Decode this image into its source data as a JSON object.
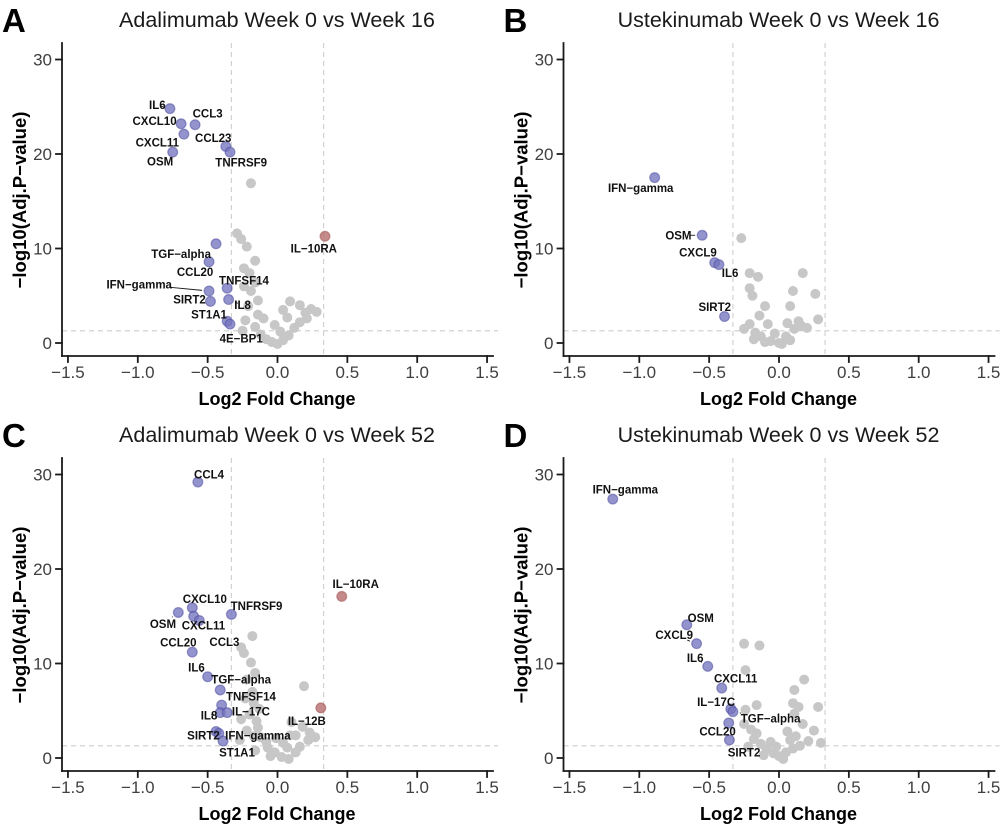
{
  "figure": {
    "colors": {
      "downregulated_point": "#8f8fca",
      "downregulated_stroke": "#5a5aa8",
      "upregulated_point": "#c48a8a",
      "upregulated_stroke": "#a96868",
      "nonsignificant_point": "#c7c7c7",
      "threshold_line": "#d2d2d2",
      "axis": "#1a1a1a",
      "tick_text": "#3f3f3f",
      "background": "#ffffff"
    },
    "axes": {
      "xlabel": "Log2 Fold Change",
      "ylabel": "−log10(Adj.P−value)",
      "x_range": [
        -1.5,
        1.5
      ],
      "y_range": [
        0,
        30
      ],
      "x_ticks": [
        {
          "v": -1.5,
          "label": "−1.5"
        },
        {
          "v": -1.0,
          "label": "−1.0"
        },
        {
          "v": -0.5,
          "label": "−0.5"
        },
        {
          "v": 0.0,
          "label": "0.0"
        },
        {
          "v": 0.5,
          "label": "0.5"
        },
        {
          "v": 1.0,
          "label": "1.0"
        },
        {
          "v": 1.5,
          "label": "1.5"
        }
      ],
      "y_ticks": [
        {
          "v": 0,
          "label": "0"
        },
        {
          "v": 10,
          "label": "10"
        },
        {
          "v": 20,
          "label": "20"
        },
        {
          "v": 30,
          "label": "30"
        }
      ],
      "thresholds": {
        "x": [
          -0.33,
          0.33
        ],
        "y": 1.3
      },
      "grid": "dashed threshold lines only"
    }
  },
  "chart_data": [
    {
      "type": "scatter",
      "letter": "A",
      "title": "Adalimumab Week 0 vs Week 16",
      "significant": [
        {
          "gene": "IL6",
          "x": -0.77,
          "y": 24.8,
          "direction": "down",
          "label_x": -0.86,
          "label_y": 25.2,
          "leader": true
        },
        {
          "gene": "CXCL10",
          "x": -0.69,
          "y": 23.2,
          "direction": "down",
          "label_x": -0.88,
          "label_y": 23.5,
          "leader": false
        },
        {
          "gene": "CCL3",
          "x": -0.59,
          "y": 23.1,
          "direction": "down",
          "label_x": -0.5,
          "label_y": 24.3,
          "leader": false
        },
        {
          "gene": "CXCL11",
          "x": -0.67,
          "y": 22.1,
          "direction": "down",
          "label_x": -0.86,
          "label_y": 21.2,
          "leader": false
        },
        {
          "gene": "OSM",
          "x": -0.75,
          "y": 20.2,
          "direction": "down",
          "label_x": -0.84,
          "label_y": 19.2,
          "leader": false
        },
        {
          "gene": "CCL23",
          "x": -0.37,
          "y": 20.8,
          "direction": "down",
          "label_x": -0.46,
          "label_y": 21.7,
          "leader": false
        },
        {
          "gene": "TNFRSF9",
          "x": -0.34,
          "y": 20.2,
          "direction": "down",
          "label_x": -0.26,
          "label_y": 19.1,
          "leader": false
        },
        {
          "gene": "TGF−alpha",
          "x": -0.44,
          "y": 10.5,
          "direction": "down",
          "label_x": -0.69,
          "label_y": 9.4,
          "leader": false
        },
        {
          "gene": "CCL20",
          "x": -0.49,
          "y": 8.6,
          "direction": "down",
          "label_x": -0.59,
          "label_y": 7.5,
          "leader": false
        },
        {
          "gene": "IL−10RA",
          "x": 0.34,
          "y": 11.3,
          "direction": "up",
          "label_x": 0.26,
          "label_y": 10.0,
          "leader": false
        },
        {
          "gene": "IFN−gamma",
          "x": -0.49,
          "y": 5.5,
          "direction": "down",
          "label_x": -0.99,
          "label_y": 6.2,
          "leader": true
        },
        {
          "gene": "TNFSF14",
          "x": -0.36,
          "y": 5.8,
          "direction": "down",
          "label_x": -0.24,
          "label_y": 6.6,
          "leader": false
        },
        {
          "gene": "SIRT2",
          "x": -0.48,
          "y": 4.4,
          "direction": "down",
          "label_x": -0.63,
          "label_y": 4.6,
          "leader": false
        },
        {
          "gene": "IL8",
          "x": -0.35,
          "y": 4.6,
          "direction": "down",
          "label_x": -0.25,
          "label_y": 4.0,
          "leader": true
        },
        {
          "gene": "ST1A1",
          "x": -0.36,
          "y": 2.3,
          "direction": "down",
          "label_x": -0.49,
          "label_y": 3.0,
          "leader": false
        },
        {
          "gene": "4E−BP1",
          "x": -0.34,
          "y": 2.0,
          "direction": "down",
          "label_x": -0.26,
          "label_y": 0.5,
          "leader": false
        }
      ],
      "nonsignificant": [
        [
          -0.19,
          16.9
        ],
        [
          -0.29,
          11.6
        ],
        [
          -0.26,
          11.0
        ],
        [
          -0.22,
          10.2
        ],
        [
          -0.16,
          8.7
        ],
        [
          -0.24,
          7.9
        ],
        [
          -0.2,
          7.4
        ],
        [
          -0.16,
          6.4
        ],
        [
          -0.24,
          6.0
        ],
        [
          -0.19,
          5.5
        ],
        [
          -0.14,
          4.5
        ],
        [
          -0.21,
          3.9
        ],
        [
          -0.14,
          3.0
        ],
        [
          -0.1,
          2.6
        ],
        [
          -0.23,
          2.4
        ],
        [
          -0.16,
          1.7
        ],
        [
          -0.25,
          1.3
        ],
        [
          -0.12,
          0.9
        ],
        [
          -0.08,
          0.4
        ],
        [
          -0.04,
          0.1
        ],
        [
          0.0,
          -0.1
        ],
        [
          0.04,
          0.3
        ],
        [
          0.02,
          1.2
        ],
        [
          0.08,
          0.8
        ],
        [
          0.12,
          1.6
        ],
        [
          0.16,
          2.2
        ],
        [
          0.07,
          2.7
        ],
        [
          0.04,
          3.5
        ],
        [
          0.2,
          3.2
        ],
        [
          0.24,
          3.6
        ],
        [
          0.16,
          4.0
        ],
        [
          0.09,
          4.4
        ],
        [
          0.28,
          3.3
        ],
        [
          -0.02,
          1.9
        ],
        [
          0.21,
          2.6
        ]
      ]
    },
    {
      "type": "scatter",
      "letter": "B",
      "title": "Ustekinumab Week 0 vs Week 16",
      "significant": [
        {
          "gene": "IFN−gamma",
          "x": -0.89,
          "y": 17.5,
          "direction": "down",
          "label_x": -0.99,
          "label_y": 16.4,
          "leader": false
        },
        {
          "gene": "OSM",
          "x": -0.55,
          "y": 11.4,
          "direction": "down",
          "label_x": -0.72,
          "label_y": 11.4,
          "leader": true
        },
        {
          "gene": "CXCL9",
          "x": -0.46,
          "y": 8.5,
          "direction": "down",
          "label_x": -0.58,
          "label_y": 9.6,
          "leader": false
        },
        {
          "gene": "IL6",
          "x": -0.43,
          "y": 8.3,
          "direction": "down",
          "label_x": -0.35,
          "label_y": 7.4,
          "leader": false
        },
        {
          "gene": "SIRT2",
          "x": -0.39,
          "y": 2.8,
          "direction": "down",
          "label_x": -0.46,
          "label_y": 3.8,
          "leader": false
        }
      ],
      "nonsignificant": [
        [
          -0.27,
          11.1
        ],
        [
          -0.21,
          7.4
        ],
        [
          -0.15,
          7.0
        ],
        [
          -0.21,
          5.8
        ],
        [
          -0.19,
          5.0
        ],
        [
          0.17,
          7.4
        ],
        [
          0.26,
          5.2
        ],
        [
          0.1,
          5.5
        ],
        [
          0.08,
          3.9
        ],
        [
          -0.1,
          3.9
        ],
        [
          -0.14,
          2.9
        ],
        [
          -0.21,
          2.0
        ],
        [
          -0.08,
          2.0
        ],
        [
          -0.17,
          1.1
        ],
        [
          -0.13,
          0.7
        ],
        [
          -0.06,
          0.2
        ],
        [
          0.0,
          0.0
        ],
        [
          0.05,
          0.7
        ],
        [
          0.11,
          1.5
        ],
        [
          0.16,
          1.8
        ],
        [
          0.14,
          2.3
        ],
        [
          0.06,
          2.1
        ],
        [
          0.28,
          2.5
        ],
        [
          -0.25,
          1.5
        ],
        [
          -0.03,
          1.0
        ],
        [
          0.2,
          1.6
        ],
        [
          -0.18,
          0.4
        ],
        [
          -0.1,
          0.1
        ],
        [
          0.02,
          -0.1
        ],
        [
          0.08,
          0.3
        ]
      ]
    },
    {
      "type": "scatter",
      "letter": "C",
      "title": "Adalimumab Week 0 vs Week 52",
      "significant": [
        {
          "gene": "CCL4",
          "x": -0.57,
          "y": 29.2,
          "direction": "down",
          "label_x": -0.49,
          "label_y": 30.0,
          "leader": false
        },
        {
          "gene": "CXCL10",
          "x": -0.61,
          "y": 15.9,
          "direction": "down",
          "label_x": -0.52,
          "label_y": 16.8,
          "leader": false
        },
        {
          "gene": "OSM",
          "x": -0.71,
          "y": 15.4,
          "direction": "down",
          "label_x": -0.82,
          "label_y": 14.2,
          "leader": true
        },
        {
          "gene": "CXCL11",
          "x": -0.6,
          "y": 15.0,
          "direction": "down",
          "label_x": -0.53,
          "label_y": 14.0,
          "leader": false
        },
        {
          "gene": "CCL3",
          "x": -0.56,
          "y": 14.55,
          "direction": "down",
          "label_x": -0.38,
          "label_y": 12.3,
          "leader": false
        },
        {
          "gene": "TNFRSF9",
          "x": -0.33,
          "y": 15.2,
          "direction": "down",
          "label_x": -0.15,
          "label_y": 16.1,
          "leader": false
        },
        {
          "gene": "CCL20",
          "x": -0.61,
          "y": 11.2,
          "direction": "down",
          "label_x": -0.71,
          "label_y": 12.2,
          "leader": false
        },
        {
          "gene": "IL6",
          "x": -0.5,
          "y": 8.6,
          "direction": "down",
          "label_x": -0.58,
          "label_y": 9.6,
          "leader": true
        },
        {
          "gene": "TGF−alpha",
          "x": -0.41,
          "y": 7.2,
          "direction": "down",
          "label_x": -0.26,
          "label_y": 8.3,
          "leader": false
        },
        {
          "gene": "TNFSF14",
          "x": -0.4,
          "y": 5.6,
          "direction": "down",
          "label_x": -0.19,
          "label_y": 6.5,
          "leader": false
        },
        {
          "gene": "IL8",
          "x": -0.41,
          "y": 4.8,
          "direction": "down",
          "label_x": -0.49,
          "label_y": 4.5,
          "leader": true
        },
        {
          "gene": "IL−17C",
          "x": -0.36,
          "y": 4.8,
          "direction": "down",
          "label_x": -0.19,
          "label_y": 4.9,
          "leader": false
        },
        {
          "gene": "IL−12B",
          "x": 0.31,
          "y": 5.3,
          "direction": "up",
          "label_x": 0.21,
          "label_y": 3.9,
          "leader": false
        },
        {
          "gene": "IL−10RA",
          "x": 0.46,
          "y": 17.1,
          "direction": "up",
          "label_x": 0.56,
          "label_y": 18.4,
          "leader": false
        },
        {
          "gene": "SIRT2",
          "x": -0.44,
          "y": 2.8,
          "direction": "down",
          "label_x": -0.53,
          "label_y": 2.4,
          "leader": false
        },
        {
          "gene": "IFN−gamma",
          "x": -0.42,
          "y": 2.6,
          "direction": "down",
          "label_x": -0.14,
          "label_y": 2.4,
          "leader": false
        },
        {
          "gene": "ST1A1",
          "x": -0.39,
          "y": 1.8,
          "direction": "down",
          "label_x": -0.29,
          "label_y": 0.6,
          "leader": false
        }
      ],
      "nonsignificant": [
        [
          -0.18,
          12.9
        ],
        [
          -0.26,
          11.7
        ],
        [
          -0.24,
          11.1
        ],
        [
          -0.19,
          10.1
        ],
        [
          -0.16,
          9.0
        ],
        [
          -0.22,
          8.3
        ],
        [
          0.19,
          7.6
        ],
        [
          -0.18,
          7.0
        ],
        [
          -0.23,
          6.3
        ],
        [
          -0.17,
          5.8
        ],
        [
          -0.13,
          5.2
        ],
        [
          -0.2,
          4.6
        ],
        [
          -0.26,
          4.1
        ],
        [
          -0.15,
          3.9
        ],
        [
          -0.14,
          3.2
        ],
        [
          -0.22,
          2.9
        ],
        [
          -0.12,
          2.2
        ],
        [
          -0.08,
          1.7
        ],
        [
          -0.01,
          2.1
        ],
        [
          0.04,
          1.6
        ],
        [
          0.09,
          2.4
        ],
        [
          -0.17,
          2.3
        ],
        [
          -0.27,
          1.9
        ],
        [
          -0.07,
          1.1
        ],
        [
          -0.16,
          0.8
        ],
        [
          -0.02,
          0.6
        ],
        [
          0.03,
          0.1
        ],
        [
          0.08,
          -0.1
        ],
        [
          0.13,
          0.6
        ],
        [
          0.16,
          1.2
        ],
        [
          0.07,
          1.1
        ],
        [
          0.22,
          1.9
        ],
        [
          0.13,
          2.4
        ],
        [
          0.18,
          3.3
        ],
        [
          0.27,
          2.2
        ],
        [
          0.1,
          3.8
        ],
        [
          0.23,
          2.7
        ],
        [
          -0.05,
          0.2
        ]
      ]
    },
    {
      "type": "scatter",
      "letter": "D",
      "title": "Ustekinumab Week 0 vs Week 52",
      "significant": [
        {
          "gene": "IFN−gamma",
          "x": -1.19,
          "y": 27.4,
          "direction": "down",
          "label_x": -1.1,
          "label_y": 28.4,
          "leader": false
        },
        {
          "gene": "OSM",
          "x": -0.66,
          "y": 14.1,
          "direction": "down",
          "label_x": -0.56,
          "label_y": 14.8,
          "leader": false
        },
        {
          "gene": "CXCL9",
          "x": -0.59,
          "y": 12.1,
          "direction": "down",
          "label_x": -0.75,
          "label_y": 13.0,
          "leader": true
        },
        {
          "gene": "IL6",
          "x": -0.51,
          "y": 9.7,
          "direction": "down",
          "label_x": -0.6,
          "label_y": 10.6,
          "leader": true
        },
        {
          "gene": "CXCL11",
          "x": -0.41,
          "y": 7.4,
          "direction": "down",
          "label_x": -0.31,
          "label_y": 8.4,
          "leader": false
        },
        {
          "gene": "IL−17C",
          "x": -0.345,
          "y": 5.2,
          "direction": "down",
          "label_x": -0.45,
          "label_y": 5.9,
          "leader": false
        },
        {
          "gene": "TGF−alpha",
          "x": -0.33,
          "y": 4.9,
          "direction": "down",
          "label_x": -0.06,
          "label_y": 4.2,
          "leader": true
        },
        {
          "gene": "CCL20",
          "x": -0.36,
          "y": 3.7,
          "direction": "down",
          "label_x": -0.44,
          "label_y": 2.8,
          "leader": false
        },
        {
          "gene": "SIRT2",
          "x": -0.355,
          "y": 1.9,
          "direction": "down",
          "label_x": -0.25,
          "label_y": 0.6,
          "leader": false
        }
      ],
      "nonsignificant": [
        [
          -0.25,
          12.1
        ],
        [
          -0.14,
          11.9
        ],
        [
          -0.24,
          9.3
        ],
        [
          0.18,
          8.3
        ],
        [
          0.11,
          7.2
        ],
        [
          0.1,
          5.8
        ],
        [
          -0.16,
          5.6
        ],
        [
          -0.24,
          5.1
        ],
        [
          0.14,
          5.4
        ],
        [
          0.28,
          5.4
        ],
        [
          0.11,
          4.7
        ],
        [
          0.17,
          3.6
        ],
        [
          -0.25,
          3.6
        ],
        [
          -0.2,
          3.0
        ],
        [
          -0.16,
          2.6
        ],
        [
          0.06,
          2.8
        ],
        [
          0.12,
          2.3
        ],
        [
          0.21,
          1.8
        ],
        [
          -0.18,
          2.0
        ],
        [
          -0.13,
          1.5
        ],
        [
          -0.09,
          1.0
        ],
        [
          -0.04,
          0.5
        ],
        [
          0.0,
          0.2
        ],
        [
          0.05,
          0.6
        ],
        [
          0.1,
          1.0
        ],
        [
          -0.22,
          1.2
        ],
        [
          -0.06,
          1.7
        ],
        [
          0.15,
          1.3
        ],
        [
          0.25,
          2.9
        ],
        [
          -0.11,
          0.3
        ],
        [
          0.03,
          -0.1
        ],
        [
          0.3,
          1.6
        ],
        [
          -0.02,
          1.2
        ],
        [
          0.08,
          1.9
        ]
      ]
    }
  ]
}
